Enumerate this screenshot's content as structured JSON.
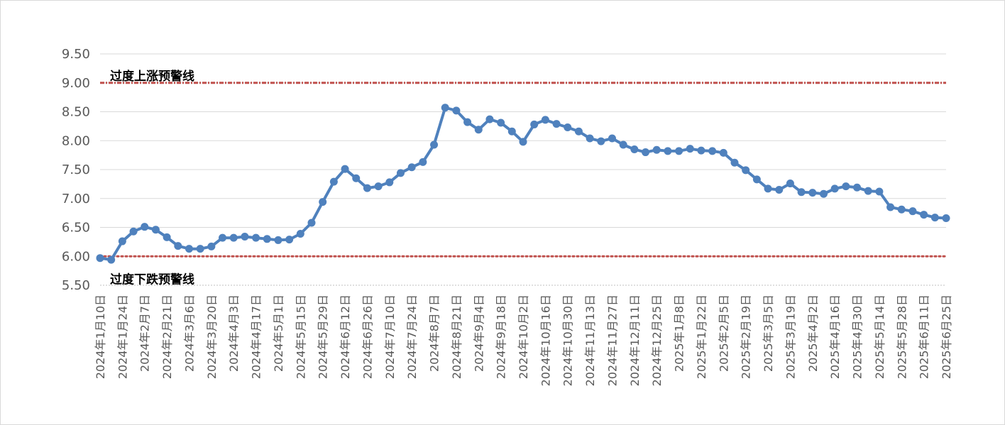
{
  "chart_data": {
    "type": "line",
    "title": "",
    "xlabel": "",
    "ylabel": "",
    "ylim": [
      5.5,
      9.5
    ],
    "yticks": [
      "5.50",
      "6.00",
      "6.50",
      "7.00",
      "7.50",
      "8.00",
      "8.50",
      "9.00",
      "9.50"
    ],
    "grid": true,
    "legend": "none",
    "line_color": "#4f81bd",
    "warning_color": "#c0504d",
    "x_tick_labels": [
      "2024年1月10日",
      "2024年1月24日",
      "2024年2月7日",
      "2024年2月21日",
      "2024年3月6日",
      "2024年3月20日",
      "2024年4月3日",
      "2024年4月17日",
      "2024年5月1日",
      "2024年5月15日",
      "2024年5月29日",
      "2024年6月12日",
      "2024年6月26日",
      "2024年7月10日",
      "2024年7月24日",
      "2024年8月7日",
      "2024年8月21日",
      "2024年9月4日",
      "2024年9月18日",
      "2024年10月2日",
      "2024年10月16日",
      "2024年10月30日",
      "2024年11月13日",
      "2024年11月27日",
      "2024年12月11日",
      "2024年12月25日",
      "2025年1月8日",
      "2025年1月22日",
      "2025年2月5日",
      "2025年2月19日",
      "2025年3月5日",
      "2025年3月19日",
      "2025年4月2日",
      "2025年4月16日",
      "2025年4月30日",
      "2025年5月14日",
      "2025年5月28日",
      "2025年6月11日",
      "2025年6月25日"
    ],
    "values": [
      5.97,
      5.94,
      6.26,
      6.43,
      6.51,
      6.46,
      6.33,
      6.18,
      6.13,
      6.13,
      6.17,
      6.32,
      6.32,
      6.34,
      6.32,
      6.3,
      6.28,
      6.29,
      6.39,
      6.58,
      6.94,
      7.29,
      7.51,
      7.35,
      7.18,
      7.21,
      7.28,
      7.44,
      7.54,
      7.63,
      7.93,
      8.57,
      8.52,
      8.32,
      8.19,
      8.37,
      8.31,
      8.16,
      7.98,
      8.28,
      8.36,
      8.29,
      8.23,
      8.16,
      8.04,
      7.99,
      8.04,
      7.93,
      7.85,
      7.8,
      7.84,
      7.82,
      7.82,
      7.86,
      7.83,
      7.82,
      7.79,
      7.62,
      7.49,
      7.33,
      7.17,
      7.15,
      7.26,
      7.11,
      7.1,
      7.08,
      7.17,
      7.21,
      7.19,
      7.13,
      7.12,
      6.85,
      6.81,
      6.78,
      6.72,
      6.67,
      6.66
    ],
    "upper_warning": {
      "value": 9.0,
      "label": "过度上涨预警线"
    },
    "lower_warning": {
      "value": 6.0,
      "label": "过度下跌预警线"
    }
  }
}
